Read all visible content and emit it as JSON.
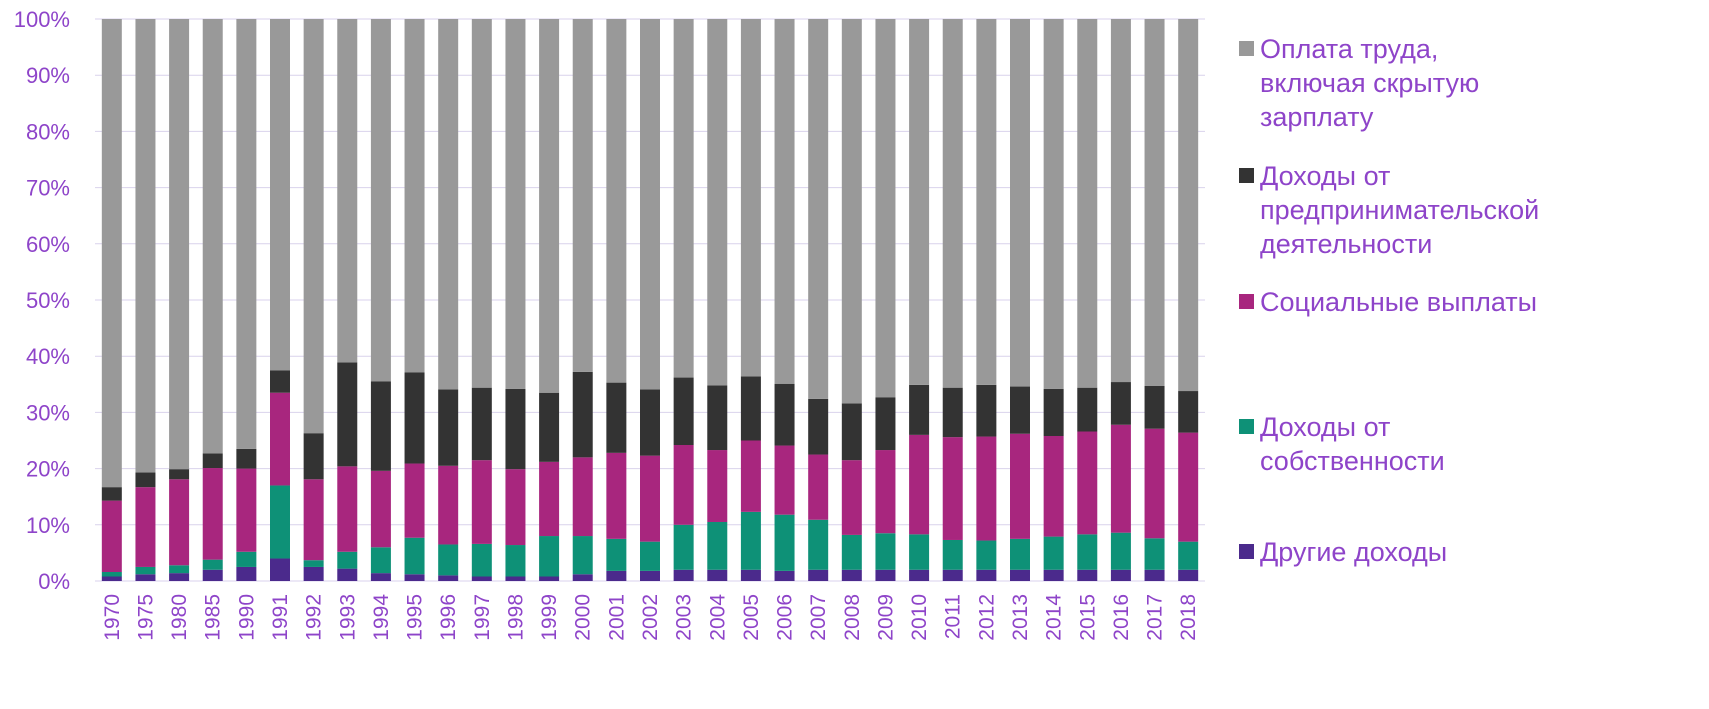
{
  "chart_data": {
    "type": "bar",
    "stacked": true,
    "percent": true,
    "ylim": [
      0,
      100
    ],
    "yticks": [
      "0%",
      "10%",
      "20%",
      "30%",
      "40%",
      "50%",
      "60%",
      "70%",
      "80%",
      "90%",
      "100%"
    ],
    "grid": true,
    "legend_position": "right",
    "categories": [
      "1970",
      "1975",
      "1980",
      "1985",
      "1990",
      "1991",
      "1992",
      "1993",
      "1994",
      "1995",
      "1996",
      "1997",
      "1998",
      "1999",
      "2000",
      "2001",
      "2002",
      "2003",
      "2004",
      "2005",
      "2006",
      "2007",
      "2008",
      "2009",
      "2010",
      "2011",
      "2012",
      "2013",
      "2014",
      "2015",
      "2016",
      "2017",
      "2018"
    ],
    "series": [
      {
        "name": "Другие доходы",
        "color": "#4b2a8c",
        "values": [
          0.8,
          1.2,
          1.4,
          2.0,
          2.5,
          4.0,
          2.5,
          2.2,
          1.4,
          1.2,
          1.0,
          0.8,
          0.8,
          0.8,
          1.2,
          1.8,
          1.8,
          2.0,
          2.0,
          2.0,
          1.8,
          2.0,
          2.0,
          2.0,
          2.0,
          2.0,
          2.0,
          2.0,
          2.0,
          2.0,
          2.0,
          2.0,
          2.0
        ]
      },
      {
        "name": "Доходы от собственности",
        "color": "#0e9177",
        "values": [
          0.8,
          1.3,
          1.4,
          1.8,
          2.7,
          13.0,
          1.2,
          3.0,
          4.6,
          6.5,
          5.5,
          5.8,
          5.6,
          7.2,
          6.8,
          5.7,
          5.2,
          8.0,
          8.5,
          10.3,
          10.0,
          8.9,
          6.2,
          6.5,
          6.3,
          5.3,
          5.2,
          5.5,
          5.9,
          6.3,
          6.6,
          5.6,
          5.0
        ]
      },
      {
        "name": "Социальные выплаты",
        "color": "#a8267e",
        "values": [
          12.7,
          14.2,
          15.3,
          16.3,
          14.8,
          16.5,
          14.4,
          15.2,
          13.6,
          13.2,
          14.0,
          14.9,
          13.5,
          13.2,
          14.0,
          15.3,
          15.3,
          14.2,
          12.8,
          12.7,
          12.3,
          11.6,
          13.3,
          14.8,
          17.7,
          18.3,
          18.5,
          18.7,
          17.9,
          18.3,
          19.2,
          19.5,
          19.4
        ]
      },
      {
        "name": "Доходы от предпринимательской деятельности",
        "color": "#333333",
        "values": [
          2.4,
          2.6,
          1.8,
          2.6,
          3.5,
          4.0,
          8.2,
          18.5,
          15.9,
          16.2,
          13.6,
          12.9,
          14.3,
          12.3,
          15.2,
          12.5,
          11.8,
          12.0,
          11.5,
          11.4,
          11.0,
          9.9,
          10.1,
          9.4,
          8.9,
          8.8,
          9.2,
          8.4,
          8.4,
          7.8,
          7.6,
          7.6,
          7.4
        ]
      },
      {
        "name": "Оплата труда, включая скрытую зарплату",
        "color": "#999999",
        "values": [
          83.3,
          80.7,
          80.1,
          77.3,
          76.5,
          62.5,
          73.7,
          61.1,
          64.5,
          62.9,
          65.9,
          65.6,
          65.8,
          66.5,
          62.8,
          64.7,
          65.9,
          63.8,
          65.2,
          63.6,
          64.9,
          67.6,
          68.4,
          67.3,
          65.1,
          65.6,
          65.1,
          65.4,
          65.8,
          65.6,
          64.6,
          65.3,
          66.2
        ]
      }
    ],
    "legend": [
      {
        "lines": [
          "Оплата труда,",
          "включая скрытую",
          "зарплату"
        ],
        "color": "#999999"
      },
      {
        "lines": [
          "Доходы от",
          "предпринимательской",
          "деятельности"
        ],
        "color": "#333333"
      },
      {
        "lines": [
          "Социальные выплаты"
        ],
        "color": "#a8267e"
      },
      {
        "lines": [
          "Доходы от",
          "собственности"
        ],
        "color": "#0e9177"
      },
      {
        "lines": [
          "Другие доходы"
        ],
        "color": "#4b2a8c"
      }
    ]
  }
}
